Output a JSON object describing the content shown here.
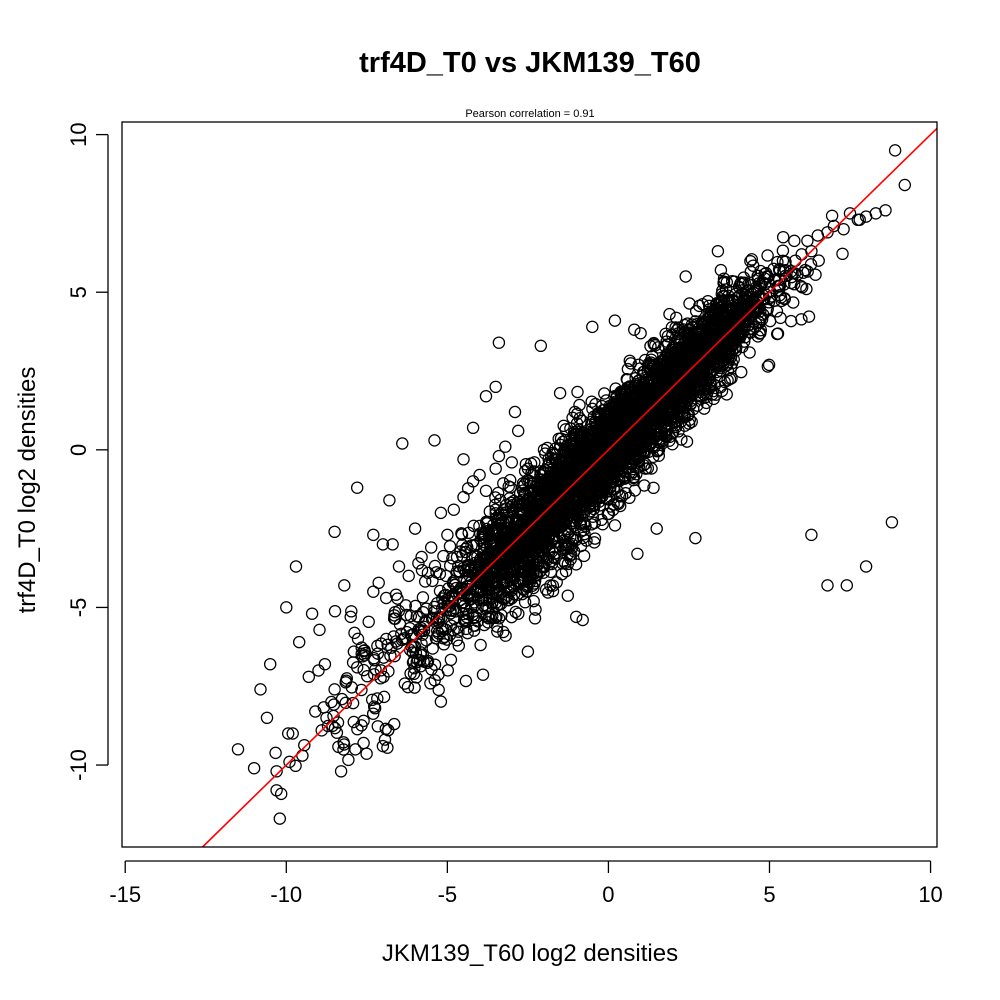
{
  "chart_data": {
    "type": "scatter",
    "title": "trf4D_T0 vs JKM139_T60",
    "subtitle": "Pearson correlation =  0.91",
    "xlabel": "JKM139_T60 log2 densities",
    "ylabel": "trf4D_T0 log2 densities",
    "xlim": [
      -15.1,
      10.2
    ],
    "ylim": [
      -12.6,
      10.4
    ],
    "x_ticks": [
      -15,
      -10,
      -5,
      0,
      5,
      10
    ],
    "x_tick_labels": [
      "-15",
      "-10",
      "-5",
      "0",
      "5",
      "10"
    ],
    "y_ticks": [
      -10,
      -5,
      0,
      5,
      10
    ],
    "y_tick_labels": [
      "-10",
      "-5",
      "0",
      "5",
      "10"
    ],
    "grid": false,
    "legend": "none",
    "point_style": "open-circle",
    "fit_line": {
      "slope": 1.0,
      "intercept": 0.0,
      "color": "#ff0000"
    },
    "series": [
      {
        "x": [
          -11.5,
          -11.0,
          -10.8,
          -10.6,
          -10.5,
          -10.3,
          -10.2,
          -10.0,
          -9.8,
          -9.6,
          -9.5,
          -9.3,
          -9.2,
          -9.0,
          -8.9,
          -8.8,
          -8.6,
          -8.5,
          -8.2,
          -8.0,
          -7.9,
          -7.8,
          -7.6,
          -7.3,
          -7.0,
          -6.9,
          -6.7,
          -6.5,
          -6.2,
          -6.0,
          -5.8,
          -5.5,
          -5.2,
          -5.0,
          -4.8,
          -4.5,
          -4.5,
          -4.2,
          -4.0,
          -3.8,
          -3.5,
          -3.4,
          -3.2,
          -3.0,
          -2.8,
          -2.5,
          -2.3,
          -2.0,
          -1.8,
          -1.5,
          -1.2,
          -1.0,
          -0.8,
          -0.5,
          -0.2,
          0.0,
          0.3,
          0.5,
          0.8,
          1.0,
          1.3,
          1.5,
          1.8,
          2.0,
          2.3,
          2.5,
          2.8,
          3.0,
          3.3,
          3.5,
          3.8,
          4.0,
          4.3,
          4.5,
          4.8,
          5.0,
          5.3,
          5.5,
          5.8,
          6.0,
          6.3,
          6.5,
          6.8,
          7.0,
          7.3,
          7.5,
          7.8,
          8.0,
          8.3,
          8.6,
          8.9,
          9.2,
          -7.8,
          -8.5,
          -9.7,
          -6.4,
          -5.4,
          -4.2,
          -3.4,
          -2.1,
          -1.5,
          -0.5,
          0.2,
          1.0,
          2.4,
          3.4,
          4.5,
          6.3,
          6.8,
          7.4,
          8.0,
          8.8,
          -6.8,
          -7.3,
          -7.0,
          -5.9,
          -4.7,
          -3.0,
          -2.5,
          -1.0,
          -0.8,
          0.9,
          1.5,
          2.7,
          -3.5,
          -3.8,
          -2.9,
          -6.9,
          -5.6,
          -4.9,
          -9.9,
          -10.3,
          -8.3,
          -7.6,
          -9.1
        ],
        "y": [
          -9.5,
          -10.1,
          -7.6,
          -8.5,
          -6.8,
          -10.8,
          -11.7,
          -5.0,
          -9.0,
          -6.1,
          -9.7,
          -7.2,
          -5.2,
          -7.0,
          -8.9,
          -6.8,
          -8.0,
          -7.6,
          -4.3,
          -5.3,
          -6.4,
          -6.9,
          -8.6,
          -4.5,
          -9.4,
          -4.7,
          -3.0,
          -3.7,
          -4.0,
          -2.5,
          -3.4,
          -3.1,
          -2.0,
          -2.7,
          -1.9,
          -1.5,
          -0.3,
          -1.0,
          -0.8,
          -1.3,
          -0.6,
          -0.2,
          0.1,
          -0.4,
          0.6,
          -0.6,
          -0.4,
          0.0,
          -0.9,
          -0.5,
          -0.3,
          -0.6,
          0.3,
          -0.2,
          0.5,
          0.4,
          0.2,
          0.6,
          1.1,
          0.7,
          1.6,
          1.4,
          1.9,
          2.5,
          2.3,
          2.6,
          3.1,
          3.0,
          3.2,
          3.5,
          3.9,
          4.1,
          4.3,
          4.6,
          4.8,
          5.0,
          5.4,
          5.7,
          6.0,
          6.2,
          6.3,
          6.8,
          6.9,
          7.1,
          7.0,
          7.5,
          7.3,
          7.4,
          7.5,
          7.6,
          9.5,
          8.4,
          -1.2,
          -2.6,
          -3.7,
          0.2,
          0.3,
          0.7,
          3.4,
          3.3,
          1.8,
          3.9,
          4.1,
          3.7,
          5.5,
          6.3,
          5.0,
          -2.7,
          -4.3,
          -4.3,
          -3.7,
          -2.3,
          -1.6,
          -2.7,
          -3.0,
          -3.6,
          -3.4,
          -4.7,
          -6.4,
          -5.3,
          -5.4,
          -3.3,
          -2.5,
          -2.8,
          2.0,
          1.7,
          1.2,
          -6.0,
          -6.7,
          -5.1,
          -9.9,
          -10.2,
          -10.2,
          -9.3,
          -8.3
        ]
      }
    ],
    "cloud": [
      {
        "cx": 0.0,
        "cy": 0.0,
        "sx": 2.2,
        "sy": 2.3,
        "corr": 0.93,
        "n": 2600
      },
      {
        "cx": 2.6,
        "cy": 2.8,
        "sx": 1.2,
        "sy": 1.3,
        "corr": 0.9,
        "n": 900
      },
      {
        "cx": -2.5,
        "cy": -2.8,
        "sx": 1.1,
        "sy": 1.3,
        "corr": 0.7,
        "n": 500
      },
      {
        "cx": -6.0,
        "cy": -6.2,
        "sx": 2.0,
        "sy": 2.0,
        "corr": 0.85,
        "n": 230
      }
    ]
  }
}
